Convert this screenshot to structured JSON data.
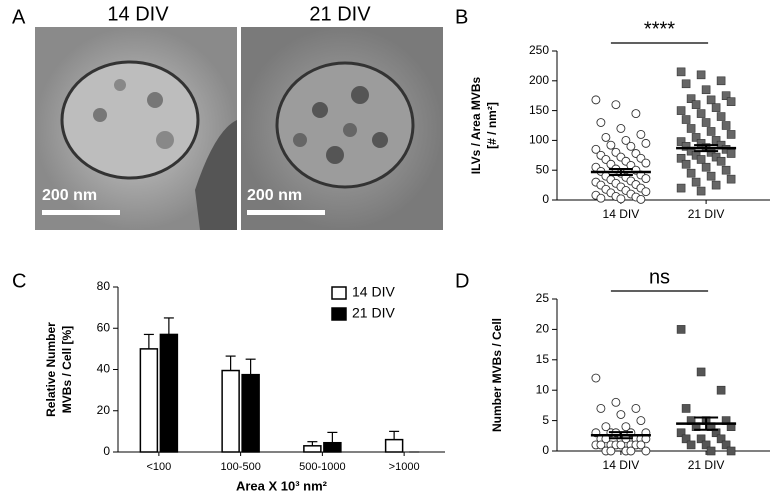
{
  "panel_labels": [
    "A",
    "B",
    "C",
    "D"
  ],
  "images": [
    {
      "label": "14 DIV",
      "scale_bar": "200 nm"
    },
    {
      "label": "21 DIV",
      "scale_bar": "200 nm"
    }
  ],
  "chart_data": [
    {
      "type": "dot",
      "ylabel": [
        "ILVs / Area MVBs",
        "[# / nm²]"
      ],
      "annotation": "****",
      "ylim": [
        0,
        250
      ],
      "yticks": [
        0,
        50,
        100,
        150,
        200,
        250
      ],
      "series": [
        {
          "name": "14 DIV",
          "color": "#ffffff",
          "marker": "circle",
          "mean": 47,
          "sem": 5,
          "values": [
            168,
            160,
            145,
            130,
            120,
            110,
            105,
            100,
            95,
            92,
            90,
            85,
            80,
            78,
            75,
            72,
            70,
            68,
            65,
            62,
            60,
            58,
            55,
            52,
            50,
            48,
            45,
            42,
            40,
            38,
            36,
            34,
            32,
            30,
            28,
            26,
            25,
            22,
            20,
            18,
            16,
            14,
            12,
            10,
            8,
            6,
            5,
            3,
            2,
            1
          ]
        },
        {
          "name": "21 DIV",
          "color": "#666666",
          "marker": "square",
          "mean": 87,
          "sem": 5,
          "values": [
            215,
            210,
            200,
            195,
            185,
            175,
            170,
            168,
            165,
            160,
            155,
            150,
            145,
            140,
            135,
            130,
            125,
            120,
            115,
            110,
            105,
            100,
            98,
            95,
            92,
            90,
            88,
            85,
            82,
            80,
            78,
            75,
            72,
            70,
            68,
            65,
            60,
            55,
            50,
            45,
            40,
            35,
            30,
            25,
            20,
            15
          ]
        }
      ]
    },
    {
      "type": "bar",
      "ylabel": [
        "Relative Number",
        "MVBs / Cell [%]"
      ],
      "xlabel": "Area  X  10³ nm²",
      "categories": [
        "<100",
        "100-500",
        "500-1000",
        ">1000"
      ],
      "ylim": [
        0,
        80
      ],
      "yticks": [
        0,
        20,
        40,
        60,
        80
      ],
      "legend": "top-right",
      "series": [
        {
          "name": "14 DIV",
          "color": "#ffffff",
          "values": [
            50,
            39.5,
            3,
            6
          ],
          "errors": [
            7,
            7,
            2,
            4
          ]
        },
        {
          "name": "21 DIV",
          "color": "#000000",
          "values": [
            57,
            37.5,
            4.5,
            0
          ],
          "errors": [
            8,
            7.5,
            5,
            0
          ]
        }
      ]
    },
    {
      "type": "dot",
      "ylabel": [
        "Number MVBs / Cell"
      ],
      "annotation": "ns",
      "ylim": [
        0,
        25
      ],
      "yticks": [
        0,
        5,
        10,
        15,
        20,
        25
      ],
      "series": [
        {
          "name": "14 DIV",
          "color": "#ffffff",
          "marker": "circle",
          "mean": 2.6,
          "sem": 0.5,
          "values": [
            12,
            8,
            7,
            7,
            6,
            5,
            4,
            4,
            3,
            3,
            3,
            3,
            3,
            2,
            2,
            2,
            2,
            2,
            2,
            2,
            1,
            1,
            1,
            1,
            1,
            1,
            1,
            1,
            0,
            0,
            0,
            0,
            0
          ]
        },
        {
          "name": "21 DIV",
          "color": "#555555",
          "marker": "square",
          "mean": 4.5,
          "sem": 1,
          "values": [
            20,
            13,
            10,
            7,
            5,
            5,
            5,
            4,
            4,
            4,
            3,
            3,
            2,
            2,
            2,
            1,
            1,
            1,
            0,
            0
          ]
        }
      ]
    }
  ]
}
